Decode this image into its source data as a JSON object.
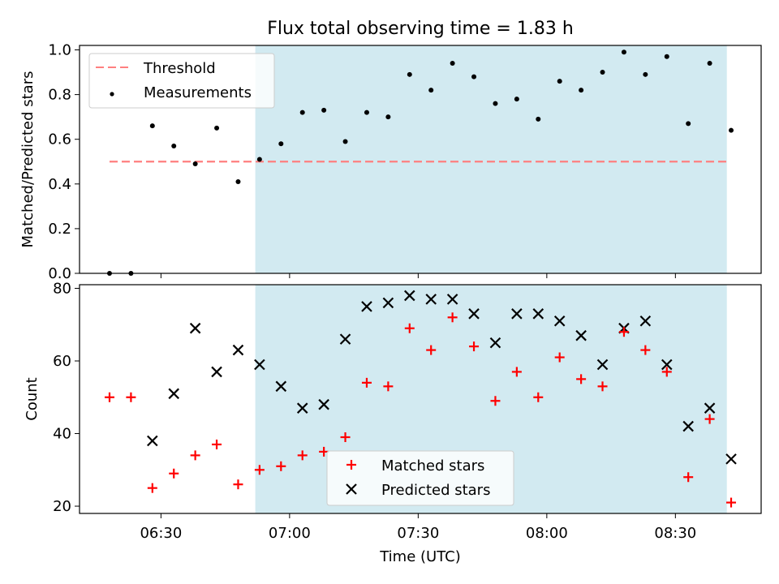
{
  "chart_data": [
    {
      "type": "scatter",
      "title": "Flux total observing time = 1.83 h",
      "xlabel": "",
      "ylabel": "Matched/Predicted stars",
      "ylim": [
        0.0,
        1.02
      ],
      "yticks": [
        "0.0",
        "0.2",
        "0.4",
        "0.6",
        "0.8",
        "1.0"
      ],
      "shaded_range": [
        "06:52",
        "08:42"
      ],
      "legend_position": "top-left",
      "threshold": {
        "name": "Threshold",
        "value": 0.5,
        "color": "#ff7f7f",
        "x_range": [
          "06:18",
          "08:42"
        ]
      },
      "series": [
        {
          "name": "Measurements",
          "color": "#000000",
          "x": [
            "06:18",
            "06:23",
            "06:28",
            "06:33",
            "06:38",
            "06:43",
            "06:48",
            "06:53",
            "06:58",
            "07:03",
            "07:08",
            "07:13",
            "07:18",
            "07:23",
            "07:28",
            "07:33",
            "07:38",
            "07:43",
            "07:48",
            "07:53",
            "07:58",
            "08:03",
            "08:08",
            "08:13",
            "08:18",
            "08:23",
            "08:28",
            "08:33",
            "08:38",
            "08:43"
          ],
          "values": [
            0.0,
            0.0,
            0.66,
            0.57,
            0.49,
            0.65,
            0.41,
            0.51,
            0.58,
            0.72,
            0.73,
            0.59,
            0.72,
            0.7,
            0.89,
            0.82,
            0.94,
            0.88,
            0.76,
            0.78,
            0.69,
            0.86,
            0.82,
            0.9,
            0.99,
            0.89,
            0.97,
            0.67,
            0.94,
            0.64
          ]
        }
      ]
    },
    {
      "type": "scatter",
      "title": "",
      "xlabel": "Time (UTC)",
      "ylabel": "Count",
      "ylim": [
        18,
        81
      ],
      "yticks": [
        "20",
        "40",
        "60",
        "80"
      ],
      "xticks": [
        "06:30",
        "07:00",
        "07:30",
        "08:00",
        "08:30"
      ],
      "shaded_range": [
        "06:52",
        "08:42"
      ],
      "legend_position": "lower-center",
      "series": [
        {
          "name": "Matched stars",
          "color": "#ff0000",
          "marker": "plus",
          "x": [
            "06:18",
            "06:23",
            "06:28",
            "06:33",
            "06:38",
            "06:43",
            "06:48",
            "06:53",
            "06:58",
            "07:03",
            "07:08",
            "07:13",
            "07:18",
            "07:23",
            "07:28",
            "07:33",
            "07:38",
            "07:43",
            "07:48",
            "07:53",
            "07:58",
            "08:03",
            "08:08",
            "08:13",
            "08:18",
            "08:23",
            "08:28",
            "08:33",
            "08:38",
            "08:43"
          ],
          "values": [
            50,
            50,
            25,
            29,
            34,
            37,
            26,
            30,
            31,
            34,
            35,
            39,
            54,
            53,
            69,
            63,
            72,
            64,
            49,
            57,
            50,
            61,
            55,
            53,
            68,
            63,
            57,
            28,
            44,
            21
          ]
        },
        {
          "name": "Predicted stars",
          "color": "#000000",
          "marker": "x",
          "x": [
            "06:28",
            "06:33",
            "06:38",
            "06:43",
            "06:48",
            "06:53",
            "06:58",
            "07:03",
            "07:08",
            "07:13",
            "07:18",
            "07:23",
            "07:28",
            "07:33",
            "07:38",
            "07:43",
            "07:48",
            "07:53",
            "07:58",
            "08:03",
            "08:08",
            "08:13",
            "08:18",
            "08:23",
            "08:28",
            "08:33",
            "08:38",
            "08:43"
          ],
          "values": [
            38,
            51,
            69,
            57,
            63,
            59,
            53,
            47,
            48,
            66,
            75,
            76,
            78,
            77,
            77,
            73,
            65,
            73,
            73,
            71,
            67,
            59,
            69,
            71,
            59,
            42,
            47,
            33
          ]
        }
      ]
    }
  ],
  "shade_color": "#add8e6"
}
